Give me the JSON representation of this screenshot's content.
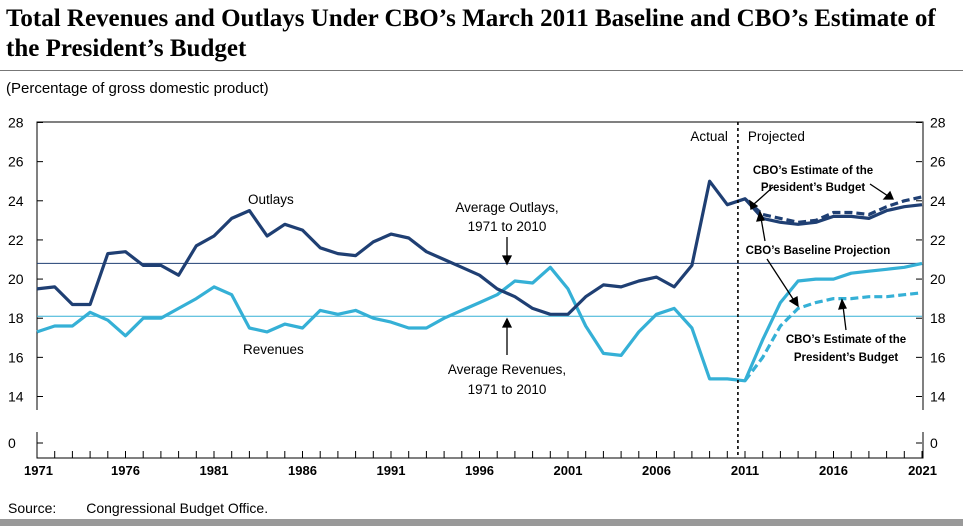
{
  "chart_data": {
    "type": "line",
    "title": "Total Revenues and Outlays Under CBO’s March 2011 Baseline and CBO’s Estimate of the President’s Budget",
    "subtitle": "(Percentage of gross domestic product)",
    "source_label": "Source:",
    "source_text": "Congressional Budget Office.",
    "xlim": [
      1971,
      2021
    ],
    "ylim": [
      0,
      28
    ],
    "y_ticks": [
      "0",
      "14",
      "16",
      "18",
      "20",
      "22",
      "24",
      "26",
      "28"
    ],
    "x_ticks": [
      "1971",
      "1976",
      "1981",
      "1986",
      "1991",
      "1996",
      "2001",
      "2006",
      "2011",
      "2016",
      "2021"
    ],
    "axis_break": "y axis broken between 0 and 14",
    "divider_year": 2010.6,
    "divider_labels": {
      "left": "Actual",
      "right": "Projected"
    },
    "reference_lines": [
      {
        "label": "Average Outlays, 1971 to 2010",
        "value": 20.8,
        "color": "#1f3f73"
      },
      {
        "label": "Average Revenues, 1971 to 2010",
        "value": 18.1,
        "color": "#35b0d6"
      }
    ],
    "series": [
      {
        "name": "Outlays",
        "color": "#1f3f73",
        "style": "solid",
        "x": [
          1971,
          1972,
          1973,
          1974,
          1975,
          1976,
          1977,
          1978,
          1979,
          1980,
          1981,
          1982,
          1983,
          1984,
          1985,
          1986,
          1987,
          1988,
          1989,
          1990,
          1991,
          1992,
          1993,
          1994,
          1995,
          1996,
          1997,
          1998,
          1999,
          2000,
          2001,
          2002,
          2003,
          2004,
          2005,
          2006,
          2007,
          2008,
          2009,
          2010,
          2011,
          2012,
          2013,
          2014,
          2015,
          2016,
          2017,
          2018,
          2019,
          2020,
          2021
        ],
        "y": [
          19.5,
          19.6,
          18.7,
          18.7,
          21.3,
          21.4,
          20.7,
          20.7,
          20.2,
          21.7,
          22.2,
          23.1,
          23.5,
          22.2,
          22.8,
          22.5,
          21.6,
          21.3,
          21.2,
          21.9,
          22.3,
          22.1,
          21.4,
          21.0,
          20.6,
          20.2,
          19.5,
          19.1,
          18.5,
          18.2,
          18.2,
          19.1,
          19.7,
          19.6,
          19.9,
          20.1,
          19.6,
          20.7,
          25.0,
          23.8,
          24.1,
          23.1,
          22.9,
          22.8,
          22.9,
          23.2,
          23.2,
          23.1,
          23.5,
          23.7,
          23.8
        ]
      },
      {
        "name": "Revenues",
        "color": "#35b0d6",
        "style": "solid",
        "x": [
          1971,
          1972,
          1973,
          1974,
          1975,
          1976,
          1977,
          1978,
          1979,
          1980,
          1981,
          1982,
          1983,
          1984,
          1985,
          1986,
          1987,
          1988,
          1989,
          1990,
          1991,
          1992,
          1993,
          1994,
          1995,
          1996,
          1997,
          1998,
          1999,
          2000,
          2001,
          2002,
          2003,
          2004,
          2005,
          2006,
          2007,
          2008,
          2009,
          2010,
          2011,
          2012,
          2013,
          2014,
          2015,
          2016,
          2017,
          2018,
          2019,
          2020,
          2021
        ],
        "y": [
          17.3,
          17.6,
          17.6,
          18.3,
          17.9,
          17.1,
          18.0,
          18.0,
          18.5,
          19.0,
          19.6,
          19.2,
          17.5,
          17.3,
          17.7,
          17.5,
          18.4,
          18.2,
          18.4,
          18.0,
          17.8,
          17.5,
          17.5,
          18.0,
          18.4,
          18.8,
          19.2,
          19.9,
          19.8,
          20.6,
          19.5,
          17.6,
          16.2,
          16.1,
          17.3,
          18.2,
          18.5,
          17.5,
          14.9,
          14.9,
          14.8,
          16.9,
          18.8,
          19.9,
          20.0,
          20.0,
          20.3,
          20.4,
          20.5,
          20.6,
          20.8
        ]
      },
      {
        "name": "CBO's Estimate of the President's Budget (Outlays)",
        "color": "#1f3f73",
        "style": "dashed",
        "x": [
          2011,
          2012,
          2013,
          2014,
          2015,
          2016,
          2017,
          2018,
          2019,
          2020,
          2021
        ],
        "y": [
          24.1,
          23.3,
          23.1,
          22.9,
          23.0,
          23.4,
          23.4,
          23.3,
          23.7,
          24.0,
          24.2
        ]
      },
      {
        "name": "CBO's Estimate of the President's Budget (Revenues)",
        "color": "#35b0d6",
        "style": "dashed",
        "x": [
          2011,
          2012,
          2013,
          2014,
          2015,
          2016,
          2017,
          2018,
          2019,
          2020,
          2021
        ],
        "y": [
          14.8,
          16.0,
          17.6,
          18.5,
          18.8,
          19.0,
          19.0,
          19.1,
          19.1,
          19.2,
          19.3
        ]
      }
    ],
    "annotations": {
      "outlays": "Outlays",
      "revenues": "Revenues",
      "avg_outlays_1": "Average Outlays,",
      "avg_outlays_2": "1971 to 2010",
      "avg_revenues_1": "Average Revenues,",
      "avg_revenues_2": "1971 to 2010",
      "pres_top_1": "CBO’s Estimate of the",
      "pres_top_2": "President’s Budget",
      "baseline": "CBO’s Baseline Projection",
      "pres_bottom_1": "CBO’s Estimate of the",
      "pres_bottom_2": "President’s Budget"
    }
  }
}
